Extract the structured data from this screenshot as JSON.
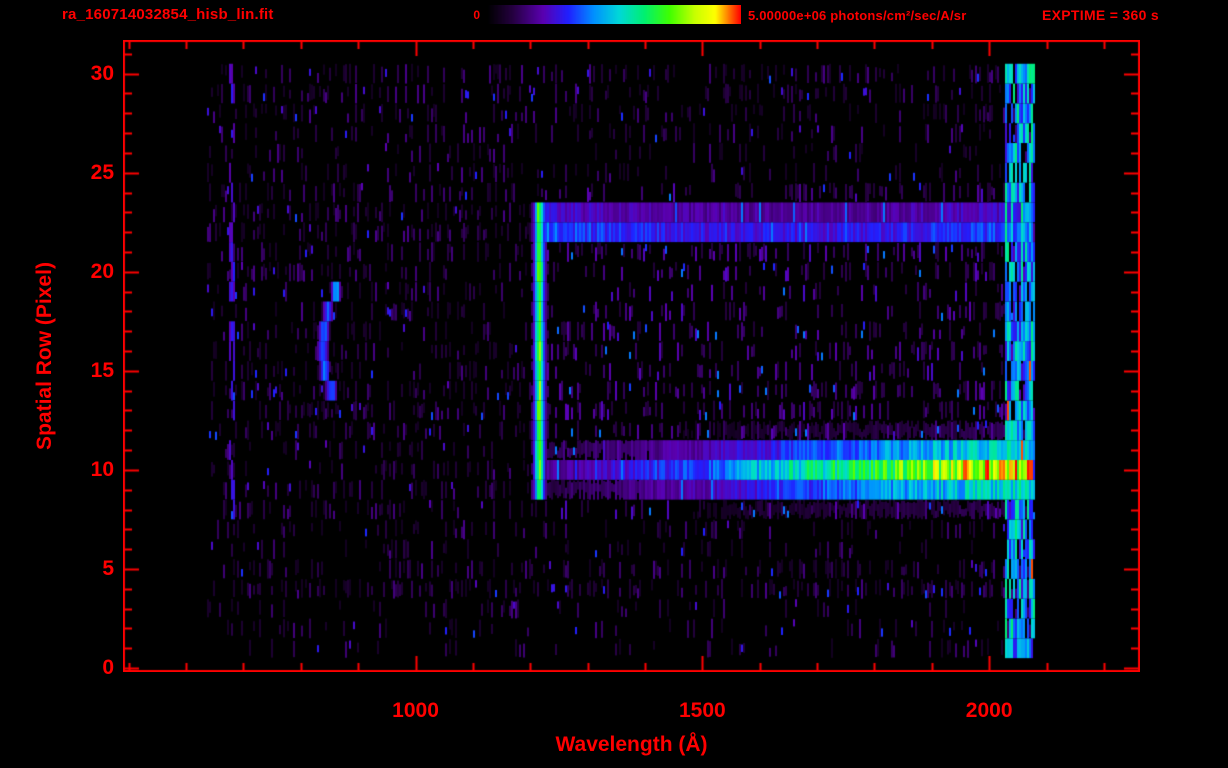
{
  "header": {
    "title": "ra_160714032854_hisb_lin.fit",
    "colorbar_min": "0",
    "colorbar_max": "5.00000e+06 photons/cm²/sec/A/sr",
    "exptime": "EXPTIME = 360 s"
  },
  "colors": {
    "accent": "#ff0000",
    "background": "#000000"
  },
  "chart_data": {
    "type": "heatmap",
    "title": "ra_160714032854_hisb_lin.fit",
    "xlabel": "Wavelength (Å)",
    "ylabel": "Spatial Row (Pixel)",
    "xlim": [
      490,
      2263
    ],
    "ylim": [
      -0.2,
      31.7
    ],
    "xticks": [
      1000,
      1500,
      2000
    ],
    "x_minor_step": 100,
    "yticks": [
      0,
      5,
      10,
      15,
      20,
      25,
      30
    ],
    "y_major_step": 5,
    "colorbar": {
      "min": 0,
      "max": 5000000,
      "units": "photons/cm²/sec/A/sr"
    },
    "data_extent": {
      "wavelength": [
        635,
        2080
      ],
      "rows": [
        0.4,
        30.3
      ]
    },
    "noise_seed": 987654321,
    "row_noise_density": [
      0.06,
      0.22,
      0.28,
      0.3,
      0.55,
      0.5,
      0.3,
      0.35,
      0.5,
      0.5,
      0.5,
      0.5,
      0.5,
      0.62,
      0.58,
      0.45,
      0.5,
      0.5,
      0.38,
      0.35,
      0.45,
      0.6,
      0.65,
      0.62,
      0.55,
      0.3,
      0.28,
      0.35,
      0.45,
      0.5,
      0.48,
      0.05
    ],
    "colormap": [
      [
        0,
        "#000000"
      ],
      [
        0.1,
        "#250040"
      ],
      [
        0.22,
        "#5a00b0"
      ],
      [
        0.32,
        "#2020ff"
      ],
      [
        0.42,
        "#0090ff"
      ],
      [
        0.52,
        "#00d8d8"
      ],
      [
        0.62,
        "#00f070"
      ],
      [
        0.72,
        "#40ff00"
      ],
      [
        0.82,
        "#c8ff00"
      ],
      [
        0.9,
        "#ffff00"
      ],
      [
        0.95,
        "#ff8000"
      ],
      [
        1,
        "#ff0000"
      ]
    ],
    "features": [
      {
        "name": "lyman-alpha-emission-line",
        "type": "vline",
        "center": 1216,
        "sigma": 8,
        "wing": 16,
        "rows": [
          8.7,
          23.7
        ],
        "peak": 0.62
      },
      {
        "name": "source-continuum-band",
        "type": "hband",
        "row_center": 10.0,
        "row_sigma": 1.4,
        "l0": 1228,
        "l1": 2078,
        "amp_curve": [
          [
            1228,
            0.18
          ],
          [
            1350,
            0.26
          ],
          [
            1500,
            0.36
          ],
          [
            1650,
            0.52
          ],
          [
            1800,
            0.68
          ],
          [
            1925,
            0.8
          ],
          [
            2000,
            0.85
          ],
          [
            2078,
            0.85
          ]
        ]
      },
      {
        "name": "upper-row-trace",
        "type": "hband",
        "row_center": 22.4,
        "row_sigma": 0.75,
        "l0": 1212,
        "l1": 2078,
        "amp_curve": [
          [
            1212,
            0.5
          ],
          [
            1300,
            0.44
          ],
          [
            1500,
            0.37
          ],
          [
            1800,
            0.37
          ],
          [
            1975,
            0.45
          ],
          [
            2078,
            0.46
          ]
        ]
      },
      {
        "name": "curved-arc-feature",
        "type": "arc",
        "l_vertex": 838,
        "row_center": 16.2,
        "k": 3.0,
        "rows": [
          13.2,
          19.3
        ],
        "width": 9,
        "amp": 0.42
      },
      {
        "name": "detector-edge-speckle",
        "type": "vband",
        "l0": 2028,
        "l1": 2080,
        "density": 0.8,
        "imin": 0.25,
        "imax": 0.62,
        "red_chance": 0.008
      },
      {
        "name": "left-hot-column",
        "type": "vband",
        "l0": 676,
        "l1": 684,
        "density": 0.45,
        "imin": 0.2,
        "imax": 0.33,
        "red_chance": 0,
        "rows": [
          8,
          30
        ]
      }
    ]
  }
}
